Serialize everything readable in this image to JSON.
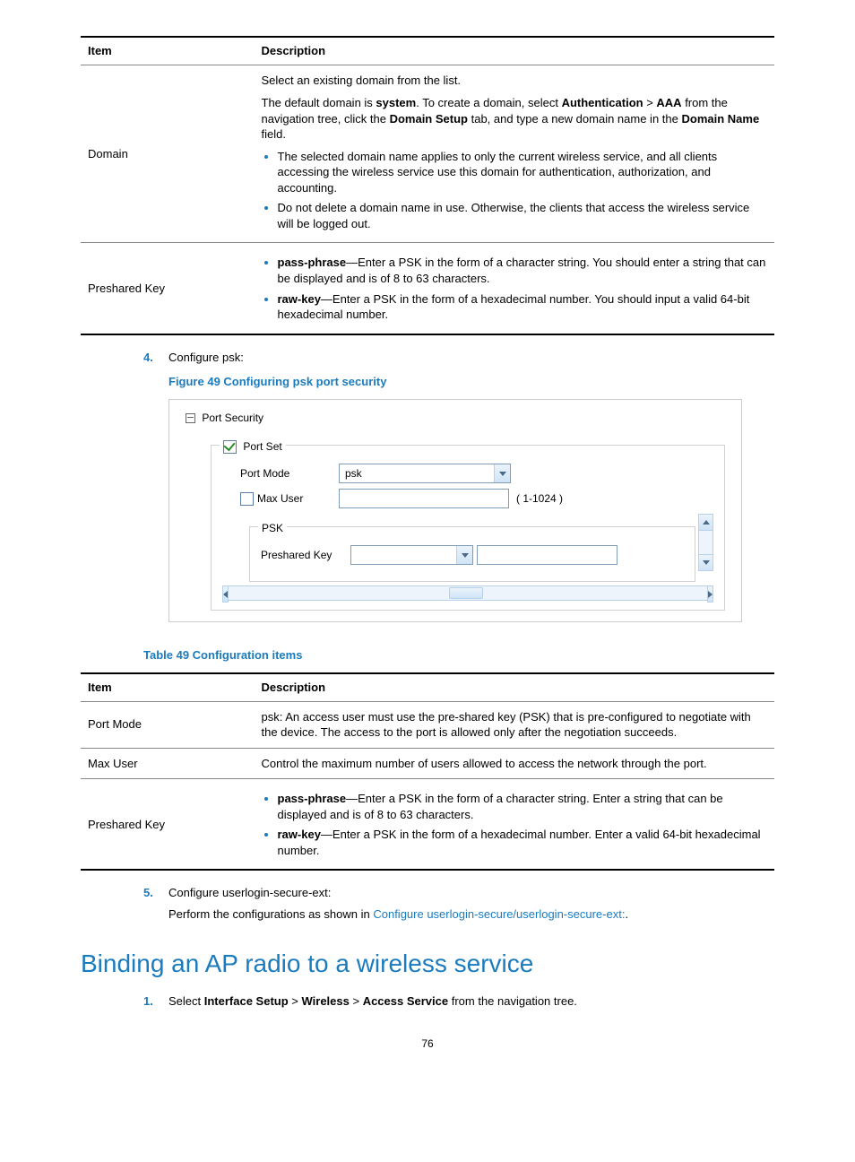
{
  "colors": {
    "accent": "#1a7bbf",
    "table_border": "#888",
    "table_border_heavy": "#000"
  },
  "table1": {
    "headers": [
      "Item",
      "Description"
    ],
    "rows": [
      {
        "item": "Domain",
        "desc_intro": "Select an existing domain from the list.",
        "desc_para": "The default domain is <b>system</b>. To create a domain, select <b>Authentication</b> > <b>AAA</b> from the navigation tree, click the <b>Domain Setup</b> tab, and type a new domain name in the <b>Domain Name</b> field.",
        "bullets": [
          "The selected domain name applies to only the current wireless service, and all clients accessing the wireless service use this domain for authentication, authorization, and accounting.",
          "Do not delete a domain name in use. Otherwise, the clients that access the wireless service will be logged out."
        ]
      },
      {
        "item": "Preshared Key",
        "bullets_rich": [
          "<b>pass-phrase</b>—Enter a PSK in the form of a character string. You should enter a string that can be displayed and is of 8 to 63 characters.",
          "<b>raw-key</b>—Enter a PSK in the form of a hexadecimal number. You should input a valid 64-bit hexadecimal number."
        ]
      }
    ]
  },
  "step4": {
    "num": "4.",
    "text": "Configure psk:"
  },
  "figure49_caption": "Figure 49 Configuring psk port security",
  "figure49": {
    "expand_label": "Port Security",
    "fieldset1": "Port Set",
    "port_mode_lbl": "Port Mode",
    "port_mode_val": "psk",
    "max_user_lbl": "Max User",
    "max_user_hint": "( 1-1024 )",
    "psk_fieldset": "PSK",
    "preshared_lbl": "Preshared Key"
  },
  "table49_caption": "Table 49 Configuration items",
  "table2": {
    "headers": [
      "Item",
      "Description"
    ],
    "rows": [
      {
        "item": "Port Mode",
        "desc": "psk: An access user must use the pre-shared key (PSK) that is pre-configured to negotiate with the device. The access to the port is allowed only after the negotiation succeeds."
      },
      {
        "item": "Max User",
        "desc": "Control the maximum number of users allowed to access the network through the port."
      },
      {
        "item": "Preshared Key",
        "bullets_rich": [
          "<b>pass-phrase</b>—Enter a PSK in the form of a character string. Enter a string that can be displayed and is of 8 to 63 characters.",
          "<b>raw-key</b>—Enter a PSK in the form of a hexadecimal number. Enter a valid 64-bit hexadecimal number."
        ]
      }
    ]
  },
  "step5": {
    "num": "5.",
    "text": "Configure userlogin-secure-ext:",
    "sub_prefix": "Perform the configurations as shown in ",
    "link": "Configure userlogin-secure/userlogin-secure-ext:",
    "sub_suffix": "."
  },
  "heading": "Binding an AP radio to a wireless service",
  "step1": {
    "num": "1.",
    "html": "Select <b>Interface Setup</b> > <b>Wireless</b> > <b>Access Service</b> from the navigation tree."
  },
  "page_number": "76"
}
